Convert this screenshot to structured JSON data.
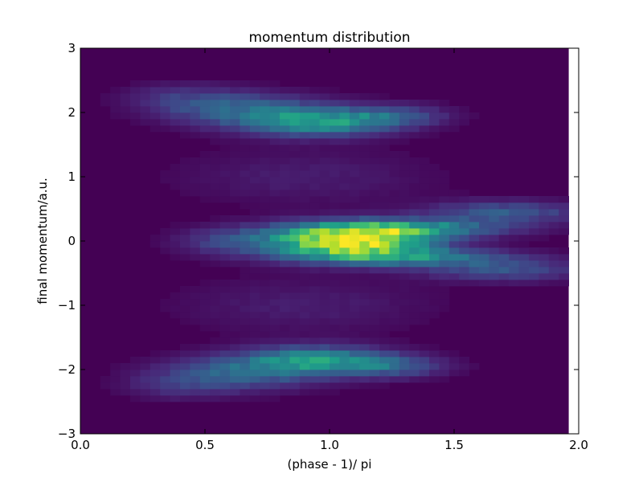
{
  "chart_data": {
    "type": "heatmap",
    "title": "momentum distribution",
    "xlabel": "(phase - 1)/ pi",
    "ylabel": "final momentum/a.u.",
    "xlim": [
      0.0,
      2.0
    ],
    "ylim": [
      -3,
      3
    ],
    "xticks": [
      "0.0",
      "0.5",
      "1.0",
      "1.5",
      "2.0"
    ],
    "yticks": [
      "3",
      "2",
      "1",
      "0",
      "−1",
      "−2",
      "−3"
    ],
    "grid": false,
    "colormap": "viridis",
    "data_x_extent": [
      0.0,
      1.96
    ],
    "bins": {
      "x": 49,
      "y": 60
    },
    "features": [
      {
        "cx": 1.08,
        "cy": 0.0,
        "sx": 0.22,
        "sy": 0.17,
        "amp": 1.0
      },
      {
        "cx": 1.3,
        "cy": 0.2,
        "sx": 0.28,
        "sy": 0.1,
        "amp": 0.45
      },
      {
        "cx": 1.3,
        "cy": -0.25,
        "sx": 0.28,
        "sy": 0.1,
        "amp": 0.4
      },
      {
        "cx": 1.7,
        "cy": 0.45,
        "sx": 0.22,
        "sy": 0.12,
        "amp": 0.28
      },
      {
        "cx": 1.7,
        "cy": -0.45,
        "sx": 0.22,
        "sy": 0.12,
        "amp": 0.24
      },
      {
        "cx": 0.6,
        "cy": 0.0,
        "sx": 0.15,
        "sy": 0.15,
        "amp": 0.18
      },
      {
        "cx": 0.95,
        "cy": 1.85,
        "sx": 0.2,
        "sy": 0.15,
        "amp": 0.5
      },
      {
        "cx": 0.65,
        "cy": 2.05,
        "sx": 0.22,
        "sy": 0.18,
        "amp": 0.3
      },
      {
        "cx": 0.4,
        "cy": 2.25,
        "sx": 0.15,
        "sy": 0.15,
        "amp": 0.12
      },
      {
        "cx": 1.25,
        "cy": 1.95,
        "sx": 0.15,
        "sy": 0.12,
        "amp": 0.25
      },
      {
        "cx": 0.95,
        "cy": -1.85,
        "sx": 0.2,
        "sy": 0.15,
        "amp": 0.5
      },
      {
        "cx": 0.65,
        "cy": -2.05,
        "sx": 0.22,
        "sy": 0.18,
        "amp": 0.3
      },
      {
        "cx": 0.4,
        "cy": -2.25,
        "sx": 0.15,
        "sy": 0.15,
        "amp": 0.12
      },
      {
        "cx": 1.25,
        "cy": -1.95,
        "sx": 0.15,
        "sy": 0.12,
        "amp": 0.25
      },
      {
        "cx": 0.9,
        "cy": 1.0,
        "sx": 0.35,
        "sy": 0.3,
        "amp": 0.08
      },
      {
        "cx": 0.9,
        "cy": -1.0,
        "sx": 0.35,
        "sy": 0.3,
        "amp": 0.08
      }
    ],
    "colors": {
      "viridis": [
        "#440154",
        "#482878",
        "#3e4989",
        "#31688e",
        "#26828e",
        "#1f9e89",
        "#35b779",
        "#6ece58",
        "#b5de2b",
        "#fde725"
      ],
      "axes": "#000000",
      "background": "#ffffff"
    }
  }
}
